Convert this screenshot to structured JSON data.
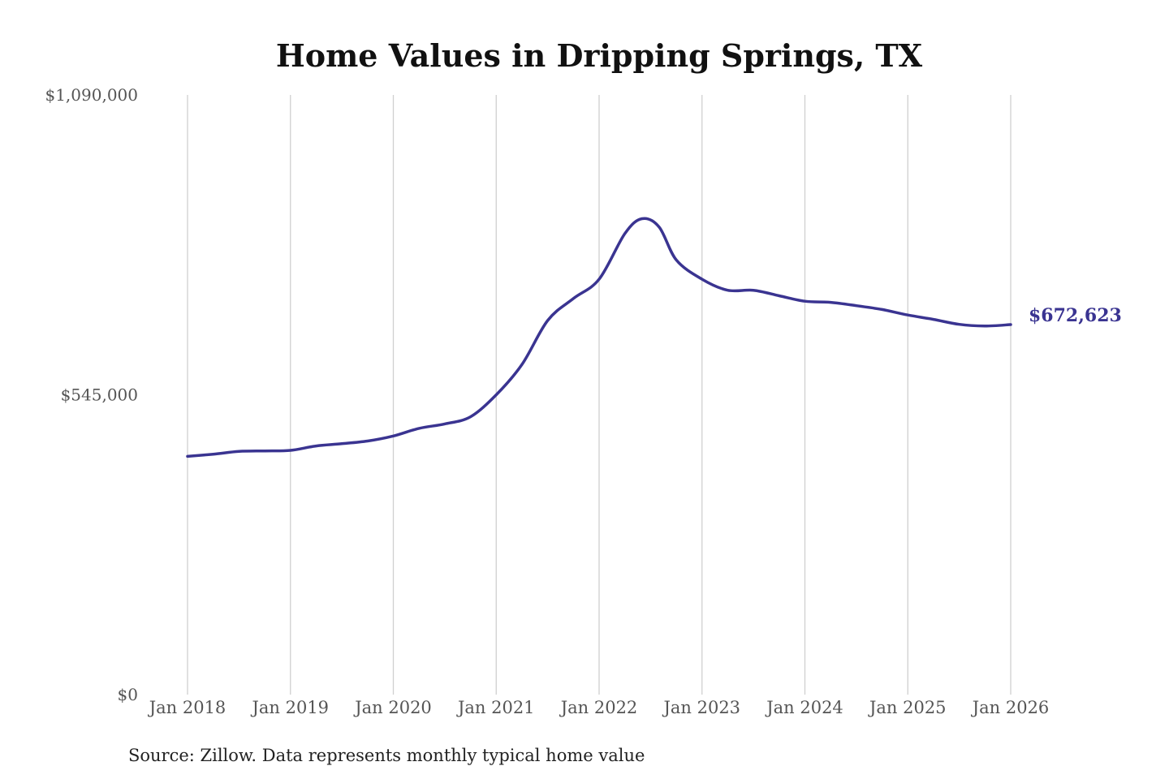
{
  "chart_data": {
    "type": "line",
    "title": "Home Values in Dripping Springs, TX",
    "source": "Source: Zillow. Data represents monthly typical home value",
    "ylim": [
      0,
      1090000
    ],
    "y_ticks": [
      "$0",
      "$545,000",
      "$1,090,000"
    ],
    "y_tick_values": [
      0,
      545000,
      1090000
    ],
    "x_ticks": [
      "Jan 2018",
      "Jan 2019",
      "Jan 2020",
      "Jan 2021",
      "Jan 2022",
      "Jan 2023",
      "Jan 2024",
      "Jan 2025",
      "Jan 2026"
    ],
    "grid": "vertical",
    "line_color": "#3a3491",
    "end_label": "$672,623",
    "series": [
      {
        "x": [
          "2018-01",
          "2018-04",
          "2018-07",
          "2018-10",
          "2019-01",
          "2019-04",
          "2019-07",
          "2019-10",
          "2020-01",
          "2020-04",
          "2020-07",
          "2020-10",
          "2021-01",
          "2021-04",
          "2021-07",
          "2021-10",
          "2022-01",
          "2022-04",
          "2022-06",
          "2022-08",
          "2022-10",
          "2023-01",
          "2023-04",
          "2023-07",
          "2023-10",
          "2024-01",
          "2024-04",
          "2024-07",
          "2024-10",
          "2025-01",
          "2025-04",
          "2025-07",
          "2025-10",
          "2026-01"
        ],
        "values": [
          433000,
          437000,
          442000,
          443000,
          444000,
          452000,
          456000,
          461000,
          470000,
          484000,
          492000,
          505000,
          545000,
          600000,
          680000,
          720000,
          755000,
          838000,
          865000,
          850000,
          790000,
          755000,
          735000,
          735000,
          725000,
          715000,
          713000,
          707000,
          700000,
          690000,
          682000,
          673000,
          670000,
          672623
        ]
      }
    ]
  }
}
